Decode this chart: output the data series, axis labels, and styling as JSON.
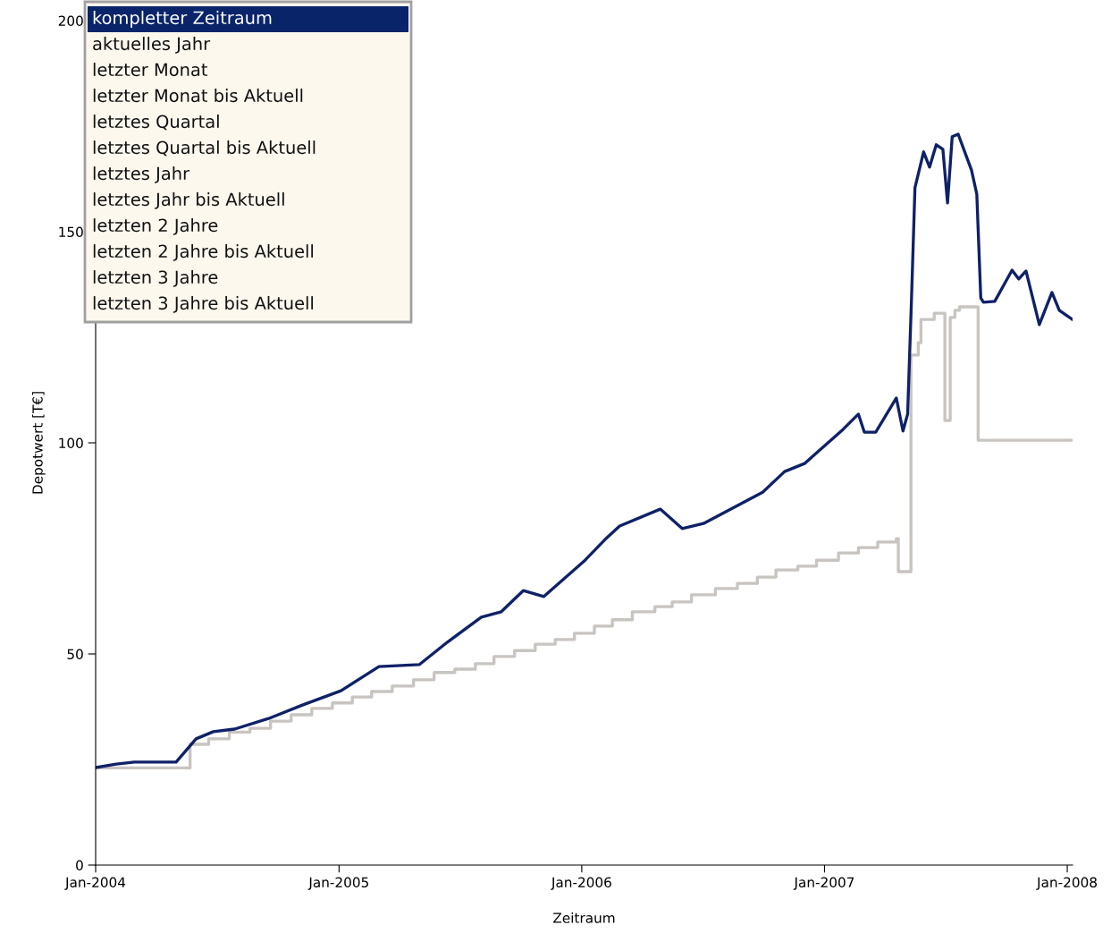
{
  "chart_data": {
    "type": "line",
    "xlabel": "Zeitraum",
    "ylabel": "Depotwert [T€]",
    "xlim": [
      "2004-01-01",
      "2008-01-09"
    ],
    "ylim": [
      0,
      200
    ],
    "xticks": [
      {
        "value": "2004-01-01",
        "label": "Jan-2004"
      },
      {
        "value": "2005-01-01",
        "label": "Jan-2005"
      },
      {
        "value": "2006-01-01",
        "label": "Jan-2006"
      },
      {
        "value": "2007-01-01",
        "label": "Jan-2007"
      },
      {
        "value": "2008-01-01",
        "label": "Jan-2008"
      }
    ],
    "yticks": [
      0,
      50,
      100,
      150,
      200
    ],
    "grid": false,
    "marker": "none",
    "line_style": "solid",
    "annotations": [
      "kompletter Zeitraum",
      "aktuelles Jahr",
      "letzter Monat",
      "letzter Monat bis Aktuell",
      "letztes Quartal",
      "letztes Quartal bis Aktuell",
      "letztes Jahr",
      "letztes Jahr bis Aktuell",
      "letzten 2 Jahre",
      "letzten 2 Jahre bis Aktuell",
      "letzten 3 Jahre",
      "letzten 3 Jahre bis Aktuell"
    ],
    "series": [
      {
        "type": "step",
        "color": "#c8c4c0",
        "x": [
          "2004-01-01",
          "2004-05-22",
          "2004-06-19",
          "2004-07-20",
          "2004-08-20",
          "2004-09-20",
          "2004-10-21",
          "2004-11-21",
          "2004-12-22",
          "2005-01-21",
          "2005-02-19",
          "2005-03-22",
          "2005-04-23",
          "2005-05-24",
          "2005-06-24",
          "2005-07-25",
          "2005-08-22",
          "2005-09-22",
          "2005-10-23",
          "2005-11-22",
          "2005-12-21",
          "2006-01-20",
          "2006-02-16",
          "2006-03-18",
          "2006-04-21",
          "2006-05-17",
          "2006-06-15",
          "2006-07-21",
          "2006-08-23",
          "2006-09-22",
          "2006-10-20",
          "2006-11-22",
          "2006-12-20",
          "2007-01-22",
          "2007-02-21",
          "2007-03-22",
          "2007-04-19",
          "2007-04-22",
          "2007-05-11",
          "2007-05-22",
          "2007-05-26",
          "2007-06-15",
          "2007-07-01",
          "2007-07-09",
          "2007-07-16",
          "2007-07-23",
          "2007-08-20",
          "2008-01-09"
        ],
        "values": [
          23.0,
          28.6,
          29.9,
          31.5,
          32.4,
          34.1,
          35.6,
          37.1,
          38.4,
          39.8,
          41.1,
          42.4,
          43.9,
          45.6,
          46.4,
          47.7,
          49.4,
          50.8,
          52.3,
          53.4,
          54.9,
          56.6,
          58.1,
          60.0,
          61.2,
          62.3,
          64.0,
          65.5,
          66.7,
          68.2,
          69.9,
          70.8,
          72.2,
          73.9,
          75.2,
          76.5,
          77.3,
          69.5,
          120.8,
          123.7,
          129.2,
          130.7,
          105.3,
          129.7,
          131.4,
          132.2,
          100.6,
          100.6
        ]
      },
      {
        "type": "line",
        "color": "#0f2167",
        "x": [
          "2004-01-01",
          "2004-02-01",
          "2004-02-28",
          "2004-05-01",
          "2004-05-31",
          "2004-06-26",
          "2004-07-28",
          "2004-09-17",
          "2004-11-07",
          "2005-01-04",
          "2005-03-02",
          "2005-05-02",
          "2005-06-13",
          "2005-08-03",
          "2005-09-02",
          "2005-10-05",
          "2005-11-05",
          "2006-01-06",
          "2006-02-05",
          "2006-02-27",
          "2006-04-29",
          "2006-06-01",
          "2006-07-03",
          "2006-09-30",
          "2006-11-02",
          "2006-12-02",
          "2007-01-29",
          "2007-02-21",
          "2007-03-02",
          "2007-03-19",
          "2007-04-19",
          "2007-04-29",
          "2007-05-06",
          "2007-05-12",
          "2007-05-17",
          "2007-05-30",
          "2007-06-08",
          "2007-06-18",
          "2007-06-28",
          "2007-07-05",
          "2007-07-12",
          "2007-07-21",
          "2007-08-10",
          "2007-08-18",
          "2007-08-24",
          "2007-08-28",
          "2007-09-14",
          "2007-10-10",
          "2007-10-20",
          "2007-10-31",
          "2007-11-20",
          "2007-12-09",
          "2007-12-20",
          "2008-01-09"
        ],
        "values": [
          23.1,
          23.9,
          24.4,
          24.4,
          29.9,
          31.6,
          32.2,
          34.7,
          37.9,
          41.3,
          47.0,
          47.5,
          52.8,
          58.7,
          60.0,
          65.0,
          63.6,
          72.2,
          77.1,
          80.3,
          84.3,
          79.7,
          80.9,
          88.3,
          93.2,
          95.1,
          103.2,
          106.8,
          102.5,
          102.5,
          110.6,
          102.8,
          106.8,
          135,
          160.4,
          168.9,
          165.3,
          170.6,
          169.5,
          156.8,
          172.5,
          173.1,
          164.6,
          158.9,
          134.3,
          133.3,
          133.5,
          140.9,
          138.8,
          140.7,
          128.0,
          135.6,
          131.4,
          129.2
        ]
      }
    ]
  }
}
